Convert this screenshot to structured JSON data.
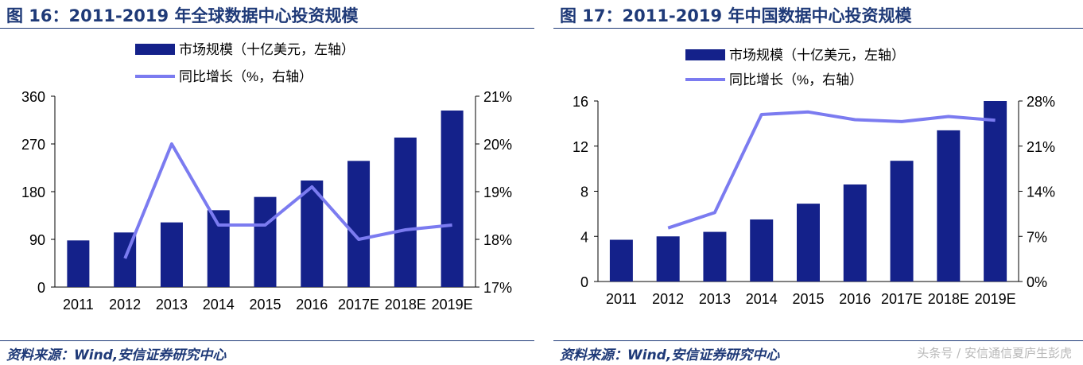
{
  "figures": [
    {
      "title": "图 16：2011-2019 年全球数据中心投资规模",
      "source": "资料来源：Wind,安信证券研究中心",
      "legend": {
        "bar": "市场规模（十亿美元，左轴）",
        "line": "同比增长（%，右轴）"
      }
    },
    {
      "title": "图 17：2011-2019 年中国数据中心投资规模",
      "source": "资料来源：Wind,安信证券研究中心",
      "legend": {
        "bar": "市场规模（十亿美元，左轴）",
        "line": "同比增长（%，右轴）"
      }
    }
  ],
  "watermark": "头条号 / 安信通信夏庐生彭虎",
  "colors": {
    "bar": "#14218a",
    "line": "#7b7bf0",
    "title": "#1f3a78"
  },
  "chart_data": [
    {
      "type": "bar",
      "categories": [
        "2011",
        "2012",
        "2013",
        "2014",
        "2015",
        "2016",
        "2017E",
        "2018E",
        "2019E"
      ],
      "series": [
        {
          "name": "市场规模（十亿美元，左轴）",
          "type": "bar",
          "axis": "left",
          "values": [
            88,
            103,
            122,
            145,
            170,
            201,
            238,
            282,
            333
          ]
        },
        {
          "name": "同比增长（%，右轴）",
          "type": "line",
          "axis": "right",
          "values": [
            null,
            17.6,
            20.0,
            18.3,
            18.3,
            19.1,
            18.0,
            18.2,
            18.3
          ]
        }
      ],
      "left_axis": {
        "ylim": [
          0,
          360
        ],
        "ticks": [
          "0",
          "90",
          "180",
          "270",
          "360"
        ]
      },
      "right_axis": {
        "ylim": [
          17,
          21
        ],
        "ticks": [
          "17%",
          "18%",
          "19%",
          "20%",
          "21%"
        ]
      },
      "legend_position": "top-center",
      "grid": false
    },
    {
      "type": "bar",
      "categories": [
        "2011",
        "2012",
        "2013",
        "2014",
        "2015",
        "2016",
        "2017E",
        "2018E",
        "2019E"
      ],
      "series": [
        {
          "name": "市场规模（十亿美元，左轴）",
          "type": "bar",
          "axis": "left",
          "values": [
            3.7,
            4.0,
            4.4,
            5.5,
            6.9,
            8.6,
            10.7,
            13.4,
            16.0
          ]
        },
        {
          "name": "同比增长（%，右轴）",
          "type": "line",
          "axis": "right",
          "values": [
            null,
            8.3,
            10.7,
            25.9,
            26.3,
            25.1,
            24.8,
            25.6,
            25.0
          ]
        }
      ],
      "left_axis": {
        "ylim": [
          0,
          16
        ],
        "ticks": [
          "0",
          "4",
          "8",
          "12",
          "16"
        ]
      },
      "right_axis": {
        "ylim": [
          0,
          28
        ],
        "ticks": [
          "0%",
          "7%",
          "14%",
          "21%",
          "28%"
        ]
      },
      "legend_position": "top-center",
      "grid": false
    }
  ]
}
